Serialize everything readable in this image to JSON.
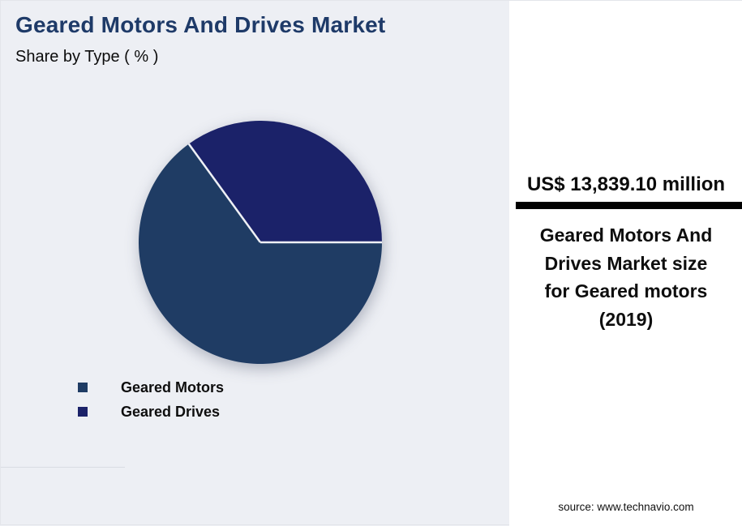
{
  "header": {
    "title": "Geared Motors And Drives Market",
    "subtitle": "Share by Type ( % )"
  },
  "chart_data": {
    "type": "pie",
    "title": "Geared Motors And Drives Market",
    "subtitle": "Share by Type ( % )",
    "unit": "%",
    "segments": [
      {
        "label": "Geared Motors",
        "value": 65,
        "color": "#1F3C64"
      },
      {
        "label": "Geared Drives",
        "value": 35,
        "color": "#1B2269"
      }
    ],
    "start_angle_deg": 0,
    "direction": "clockwise",
    "legend_position": "bottom-left",
    "slice_divider_color": "#eef0f5",
    "annotation": {
      "value": "US$ 13,839.10 million",
      "caption": "Geared Motors And Drives Market size for Geared motors (2019)"
    }
  },
  "panel": {
    "highlight_value": "US$ 13,839.10 million",
    "highlight_caption": "Geared Motors And\nDrives Market size\nfor Geared motors\n(2019)",
    "source": "source: www.technavio.com",
    "bar_color": "#000000",
    "background": "#ffffff"
  }
}
